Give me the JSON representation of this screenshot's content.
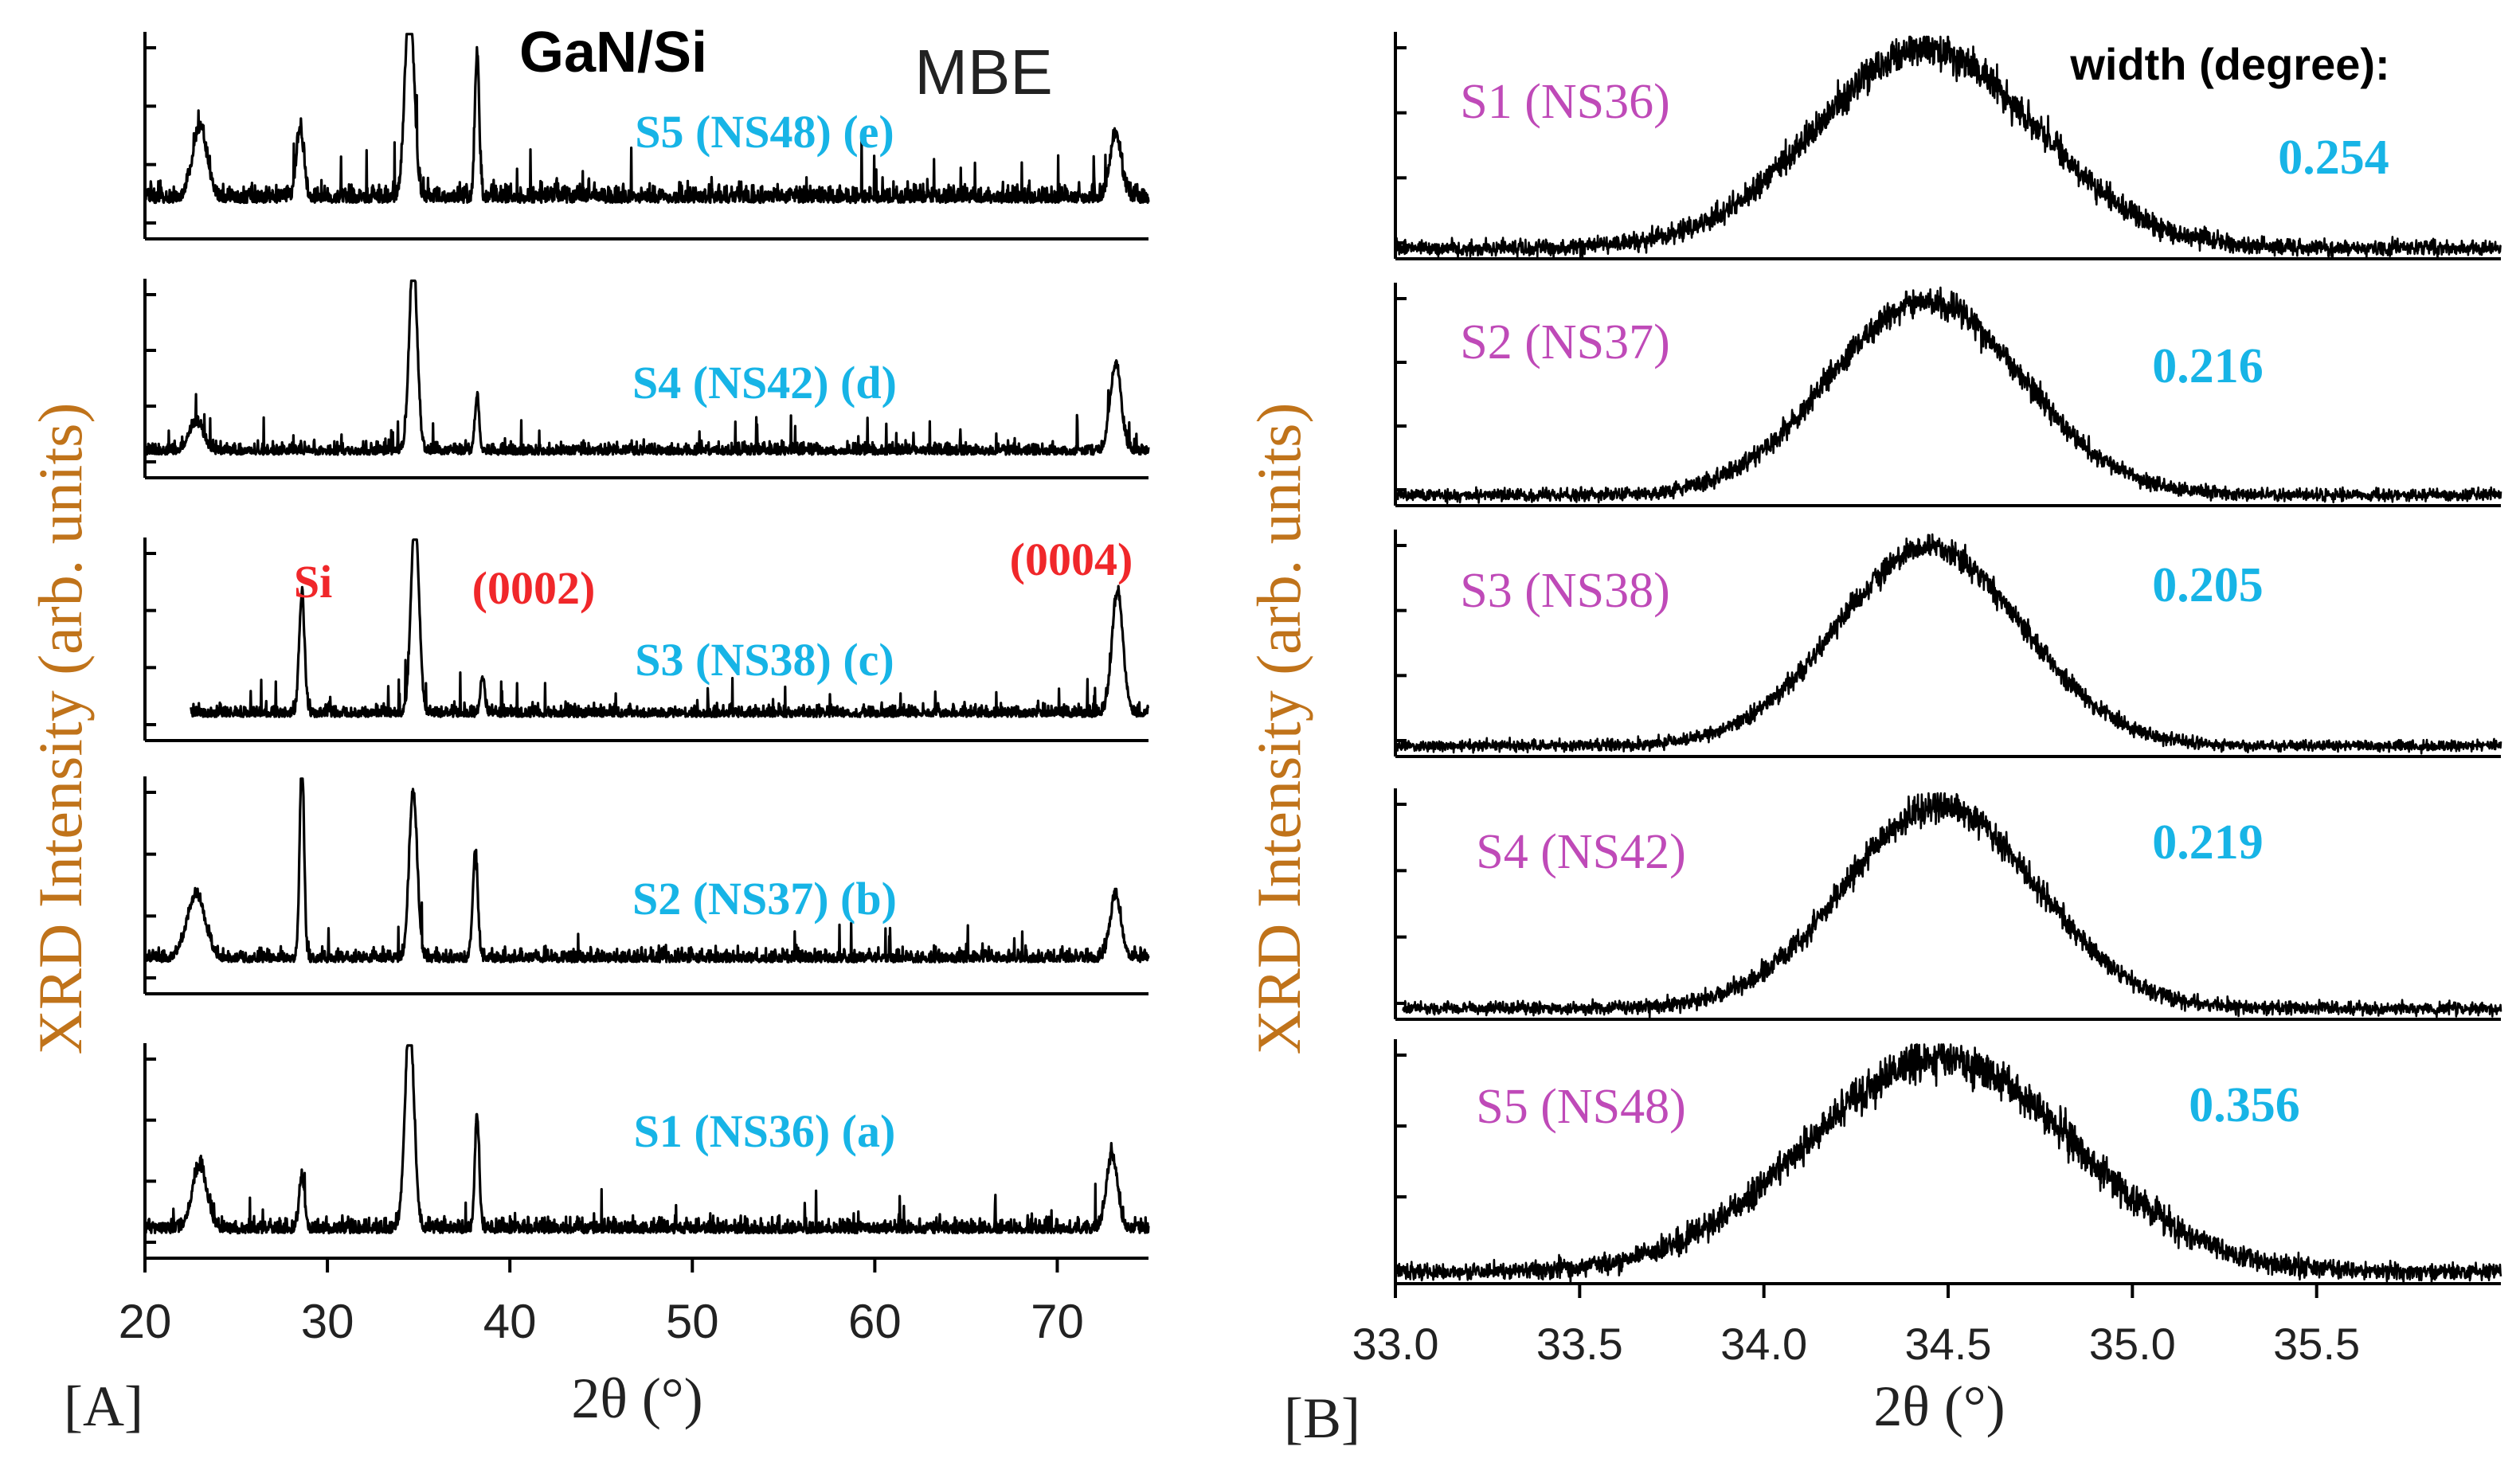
{
  "colors": {
    "trace": "#000000",
    "sample_a": "#17b4e6",
    "sample_b": "#bf4ab8",
    "peak": "#f0272a",
    "axis_title": "#c0731a"
  },
  "chart_data": [
    {
      "type": "line",
      "panel_label": "[A]",
      "title": "GaN/Si",
      "subtitle": "MBE",
      "xlabel": "2θ (°)",
      "ylabel": "XRD Intensity (arb. units)",
      "xlim": [
        20,
        75
      ],
      "xticks": [
        20,
        30,
        40,
        50,
        60,
        70
      ],
      "peak_labels": [
        "Si",
        "(0002)",
        "(0004)"
      ],
      "series": [
        {
          "name": "S5 (NS48)  (e)",
          "baseline": 0.18,
          "noise": 0.1,
          "x_start": 20,
          "peaks": [
            [
              23,
              0.35,
              0.4
            ],
            [
              28.5,
              0.35,
              0.2
            ],
            [
              34.5,
              1.0,
              0.25
            ],
            [
              38.2,
              0.72,
              0.12
            ],
            [
              73.2,
              0.32,
              0.3
            ]
          ]
        },
        {
          "name": "S4 (NS42)  (d)",
          "baseline": 0.12,
          "noise": 0.07,
          "x_start": 20,
          "peaks": [
            [
              22.8,
              0.15,
              0.4
            ],
            [
              34.7,
              1.0,
              0.22
            ],
            [
              38.2,
              0.28,
              0.12
            ],
            [
              73.2,
              0.45,
              0.3
            ]
          ]
        },
        {
          "name": "S3 (NS38)  (c)",
          "baseline": 0.12,
          "noise": 0.07,
          "x_start": 22.5,
          "peaks": [
            [
              28.6,
              0.6,
              0.15
            ],
            [
              34.8,
              1.0,
              0.22
            ],
            [
              38.5,
              0.18,
              0.12
            ],
            [
              73.3,
              0.62,
              0.3
            ]
          ]
        },
        {
          "name": "S2 (NS37)  (b)",
          "baseline": 0.15,
          "noise": 0.07,
          "x_start": 20,
          "peaks": [
            [
              22.8,
              0.3,
              0.5
            ],
            [
              28.6,
              0.95,
              0.12
            ],
            [
              34.7,
              0.8,
              0.22
            ],
            [
              38.1,
              0.5,
              0.14
            ],
            [
              73.2,
              0.3,
              0.3
            ]
          ]
        },
        {
          "name": "S1 (NS36)  (a)",
          "baseline": 0.12,
          "noise": 0.08,
          "x_start": 20,
          "peaks": [
            [
              23,
              0.3,
              0.4
            ],
            [
              28.6,
              0.25,
              0.15
            ],
            [
              34.5,
              1.0,
              0.25
            ],
            [
              38.2,
              0.55,
              0.12
            ],
            [
              73.0,
              0.35,
              0.3
            ]
          ]
        }
      ]
    },
    {
      "type": "line",
      "panel_label": "[B]",
      "title": "width (degree):",
      "xlabel": "2θ (°)",
      "ylabel": "XRD Intensity (arb. units)",
      "xlim": [
        33.0,
        36.0
      ],
      "xticks": [
        "33.0",
        "33.5",
        "34.0",
        "34.5",
        "35.0",
        "35.5"
      ],
      "series": [
        {
          "name": "S1 (NS36)",
          "fwhm": "0.254",
          "center": 34.44,
          "sigma": 0.3,
          "noise": 0.1,
          "x_start": 33.0
        },
        {
          "name": "S2 (NS37)",
          "fwhm": "0.216",
          "center": 34.44,
          "sigma": 0.26,
          "noise": 0.08,
          "x_start": 33.0
        },
        {
          "name": "S3 (NS38)",
          "fwhm": "0.205",
          "center": 34.45,
          "sigma": 0.25,
          "noise": 0.07,
          "x_start": 33.0
        },
        {
          "name": "S4 (NS42)",
          "fwhm": "0.219",
          "center": 34.48,
          "sigma": 0.26,
          "noise": 0.08,
          "x_start": 33.02
        },
        {
          "name": "S5 (NS48)",
          "fwhm": "0.356",
          "center": 34.48,
          "sigma": 0.36,
          "noise": 0.1,
          "x_start": 33.0
        }
      ]
    }
  ]
}
